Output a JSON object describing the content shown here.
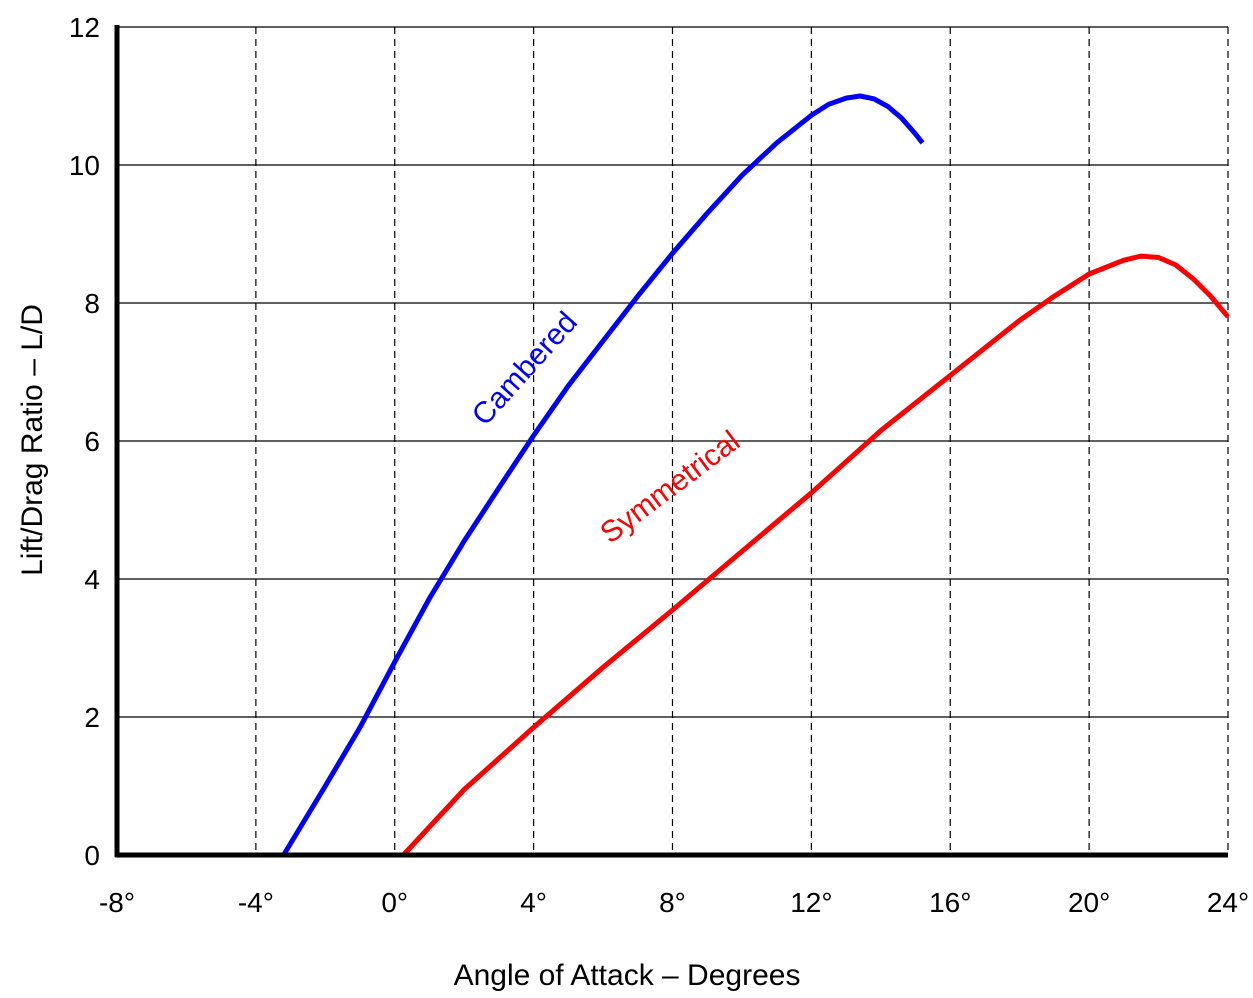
{
  "chart_data": {
    "type": "line",
    "title": "",
    "xlabel": "Angle of Attack – Degrees",
    "ylabel": "Lift/Drag Ratio – L/D",
    "xlim": [
      -8,
      24
    ],
    "ylim": [
      0,
      12
    ],
    "x_ticks": [
      -8,
      -4,
      0,
      4,
      8,
      12,
      16,
      20,
      24
    ],
    "x_tick_labels": [
      "-8°",
      "-4°",
      "0°",
      "4°",
      "8°",
      "12°",
      "16°",
      "20°",
      "24°"
    ],
    "y_ticks": [
      0,
      2,
      4,
      6,
      8,
      10,
      12
    ],
    "y_tick_labels": [
      "0",
      "2",
      "4",
      "6",
      "8",
      "10",
      "12"
    ],
    "grid": {
      "vertical": "dashed",
      "horizontal": "solid"
    },
    "legend": "none (curves labeled inline)",
    "series": [
      {
        "name": "Cambered",
        "color": "#0000ff",
        "x": [
          -3.2,
          -2,
          -1,
          0,
          1,
          2,
          3,
          4,
          5,
          6,
          7,
          8,
          9,
          10,
          11,
          12,
          12.5,
          13,
          13.4,
          13.8,
          14.2,
          14.6,
          15.0,
          15.2
        ],
        "y": [
          0,
          1.0,
          1.85,
          2.8,
          3.72,
          4.55,
          5.32,
          6.08,
          6.8,
          7.45,
          8.1,
          8.72,
          9.3,
          9.85,
          10.32,
          10.72,
          10.88,
          10.97,
          11.0,
          10.96,
          10.85,
          10.68,
          10.45,
          10.32
        ]
      },
      {
        "name": "Symmetrical",
        "color": "#ff0000",
        "x": [
          0.25,
          2,
          4,
          6,
          8,
          10,
          12,
          14,
          16,
          18,
          19,
          20,
          21,
          21.5,
          22,
          22.5,
          23,
          23.5,
          24
        ],
        "y": [
          0,
          0.95,
          1.85,
          2.72,
          3.55,
          4.4,
          5.25,
          6.15,
          6.95,
          7.75,
          8.1,
          8.42,
          8.62,
          8.68,
          8.66,
          8.55,
          8.35,
          8.1,
          7.8
        ]
      }
    ],
    "annotations": [
      {
        "text": "Cambered",
        "series": "Cambered",
        "x": 2.6,
        "y": 6.2,
        "angle_deg": -48
      },
      {
        "text": "Symmetrical",
        "series": "Symmetrical",
        "x": 6.2,
        "y": 4.5,
        "angle_deg": -37
      }
    ]
  }
}
